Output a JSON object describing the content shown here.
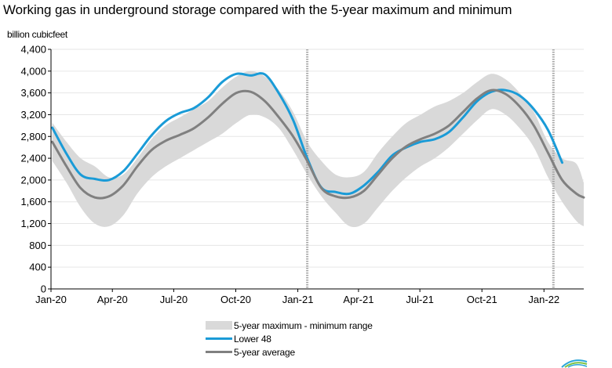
{
  "chart_data": {
    "type": "area",
    "title": "Working gas in underground  storage compared with the 5-year maximum and minimum",
    "ylabel": "billion cubicfeet",
    "xlabel": "",
    "ylim": [
      0,
      4400
    ],
    "yticks": [
      0,
      400,
      800,
      1200,
      1600,
      2000,
      2400,
      2800,
      3200,
      3600,
      4000,
      4400
    ],
    "ytick_labels": [
      "0",
      "400",
      "800",
      "1,200",
      "1,600",
      "2,000",
      "2,400",
      "2,800",
      "3,200",
      "3,600",
      "4,000",
      "4,400"
    ],
    "xlim": [
      "2020-01-01",
      "2022-03-01"
    ],
    "xtick_labels": [
      {
        "date": "2020-01-01",
        "label": "Jan-20"
      },
      {
        "date": "2020-04-01",
        "label": "Apr-20"
      },
      {
        "date": "2020-07-01",
        "label": "Jul-20"
      },
      {
        "date": "2020-10-01",
        "label": "Oct-20"
      },
      {
        "date": "2021-01-01",
        "label": "Jan-21"
      },
      {
        "date": "2021-04-01",
        "label": "Apr-21"
      },
      {
        "date": "2021-07-01",
        "label": "Jul-21"
      },
      {
        "date": "2021-10-01",
        "label": "Oct-21"
      },
      {
        "date": "2022-01-01",
        "label": "Jan-22"
      }
    ],
    "vertical_markers": [
      "2021-01-15",
      "2022-01-15"
    ],
    "grid": "horizontal",
    "legend_position": "bottom-center",
    "series": [
      {
        "name": "5-year maximum - minimum range",
        "kind": "band",
        "color": "#d9d9d9",
        "x": [
          "2020-01-03",
          "2020-01-24",
          "2020-02-14",
          "2020-03-06",
          "2020-03-27",
          "2020-04-17",
          "2020-05-08",
          "2020-05-29",
          "2020-06-19",
          "2020-07-10",
          "2020-07-31",
          "2020-08-21",
          "2020-09-11",
          "2020-10-02",
          "2020-10-23",
          "2020-11-13",
          "2020-12-04",
          "2020-12-25",
          "2021-01-15",
          "2021-02-05",
          "2021-02-26",
          "2021-03-19",
          "2021-04-09",
          "2021-04-30",
          "2021-05-21",
          "2021-06-11",
          "2021-07-02",
          "2021-07-23",
          "2021-08-13",
          "2021-09-03",
          "2021-09-24",
          "2021-10-15",
          "2021-11-05",
          "2021-11-26",
          "2021-12-17",
          "2022-01-07",
          "2022-01-28",
          "2022-02-18",
          "2022-03-01"
        ],
        "upper": [
          3050,
          2700,
          2400,
          2250,
          2050,
          2100,
          2400,
          2750,
          3000,
          3150,
          3300,
          3450,
          3700,
          3900,
          4000,
          3900,
          3650,
          3250,
          2700,
          2350,
          2100,
          2050,
          2150,
          2500,
          2800,
          3050,
          3200,
          3350,
          3450,
          3600,
          3800,
          3950,
          3850,
          3600,
          3250,
          2700,
          2400,
          2300,
          1950
        ],
        "lower": [
          2350,
          1950,
          1500,
          1200,
          1150,
          1350,
          1750,
          2050,
          2250,
          2400,
          2550,
          2700,
          2850,
          3050,
          3200,
          3150,
          2950,
          2550,
          2100,
          1700,
          1400,
          1150,
          1200,
          1500,
          1800,
          2050,
          2250,
          2400,
          2600,
          2850,
          3100,
          3300,
          3200,
          2950,
          2600,
          2050,
          1600,
          1250,
          1150
        ]
      },
      {
        "name": "Lower 48",
        "kind": "line",
        "color": "#1a9bd7",
        "x": [
          "2020-01-03",
          "2020-01-24",
          "2020-02-14",
          "2020-03-06",
          "2020-03-27",
          "2020-04-17",
          "2020-05-08",
          "2020-05-29",
          "2020-06-19",
          "2020-07-10",
          "2020-07-31",
          "2020-08-21",
          "2020-09-11",
          "2020-10-02",
          "2020-10-23",
          "2020-11-13",
          "2020-12-04",
          "2020-12-25",
          "2021-01-15",
          "2021-02-05",
          "2021-02-26",
          "2021-03-19",
          "2021-04-09",
          "2021-04-30",
          "2021-05-21",
          "2021-06-11",
          "2021-07-02",
          "2021-07-23",
          "2021-08-13",
          "2021-09-03",
          "2021-09-24",
          "2021-10-15",
          "2021-11-05",
          "2021-11-26",
          "2021-12-17",
          "2022-01-07",
          "2022-01-28"
        ],
        "values": [
          2960,
          2480,
          2100,
          2020,
          2000,
          2160,
          2480,
          2820,
          3080,
          3230,
          3320,
          3520,
          3800,
          3950,
          3920,
          3940,
          3590,
          3100,
          2400,
          1860,
          1780,
          1750,
          1900,
          2150,
          2450,
          2600,
          2700,
          2750,
          2880,
          3150,
          3450,
          3620,
          3650,
          3550,
          3300,
          2920,
          2320
        ]
      },
      {
        "name": "5-year average",
        "kind": "line",
        "color": "#808080",
        "x": [
          "2020-01-03",
          "2020-01-24",
          "2020-02-14",
          "2020-03-06",
          "2020-03-27",
          "2020-04-17",
          "2020-05-08",
          "2020-05-29",
          "2020-06-19",
          "2020-07-10",
          "2020-07-31",
          "2020-08-21",
          "2020-09-11",
          "2020-10-02",
          "2020-10-23",
          "2020-11-13",
          "2020-12-04",
          "2020-12-25",
          "2021-01-15",
          "2021-02-05",
          "2021-02-26",
          "2021-03-19",
          "2021-04-09",
          "2021-04-30",
          "2021-05-21",
          "2021-06-11",
          "2021-07-02",
          "2021-07-23",
          "2021-08-13",
          "2021-09-03",
          "2021-09-24",
          "2021-10-15",
          "2021-11-05",
          "2021-11-26",
          "2021-12-17",
          "2022-01-07",
          "2022-01-28",
          "2022-02-18",
          "2022-03-01"
        ],
        "values": [
          2700,
          2250,
          1850,
          1680,
          1700,
          1900,
          2250,
          2550,
          2720,
          2830,
          2950,
          3150,
          3400,
          3600,
          3620,
          3450,
          3150,
          2800,
          2350,
          1850,
          1700,
          1680,
          1800,
          2100,
          2400,
          2620,
          2750,
          2850,
          3000,
          3250,
          3500,
          3650,
          3580,
          3350,
          3000,
          2500,
          2000,
          1750,
          1680
        ]
      }
    ]
  },
  "colors": {
    "band": "#d9d9d9",
    "lower48": "#1a9bd7",
    "avg": "#808080",
    "grid": "#e6e6e6",
    "marker": "#a6a6a6"
  },
  "legend": {
    "range_label": "5-year maximum - minimum range",
    "lower48_label": "Lower 48",
    "avg_label": "5-year average"
  },
  "logo": {
    "icon": "eia-logo-icon"
  }
}
